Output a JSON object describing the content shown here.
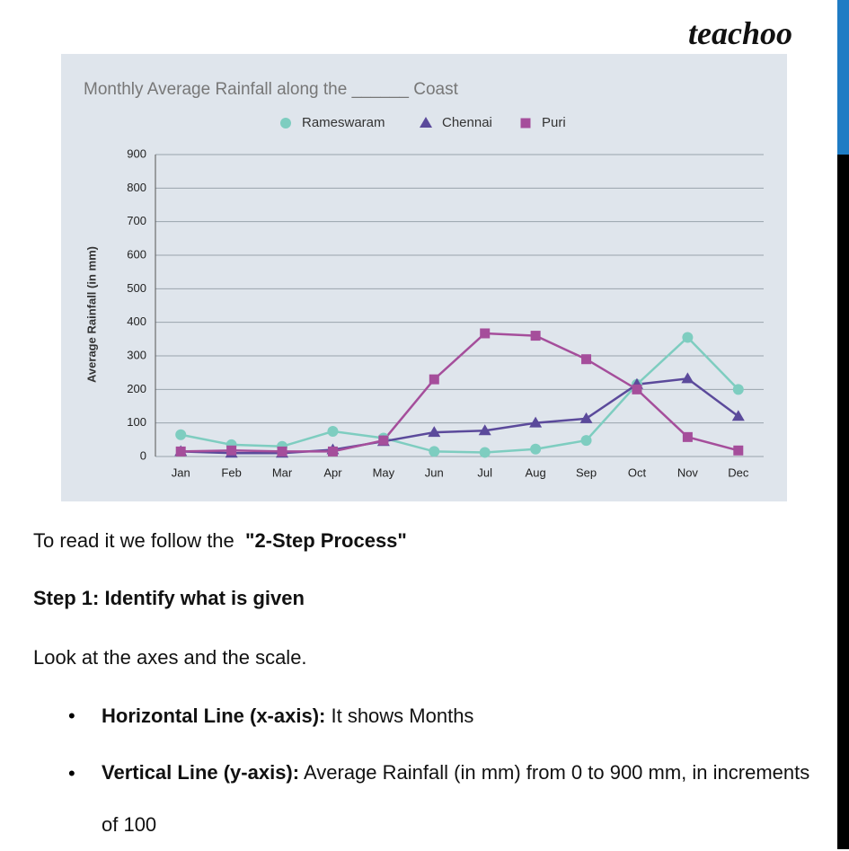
{
  "brand": "teachoo",
  "chart_data": {
    "type": "line",
    "title": "Monthly Average Rainfall along the ______ Coast",
    "y_label": "Average Rainfall (in mm)",
    "categories": [
      "Jan",
      "Feb",
      "Mar",
      "Apr",
      "May",
      "Jun",
      "Jul",
      "Aug",
      "Sep",
      "Oct",
      "Nov",
      "Dec"
    ],
    "series": [
      {
        "name": "Rameswaram",
        "color": "#7ecdc0",
        "marker": "circle",
        "values": [
          65,
          35,
          30,
          75,
          55,
          15,
          12,
          22,
          48,
          215,
          355,
          200
        ]
      },
      {
        "name": "Chennai",
        "color": "#5b4a9b",
        "marker": "triangle",
        "values": [
          15,
          10,
          10,
          20,
          45,
          72,
          77,
          100,
          113,
          215,
          232,
          120
        ]
      },
      {
        "name": "Puri",
        "color": "#a54e9b",
        "marker": "square",
        "values": [
          15,
          18,
          15,
          15,
          48,
          230,
          367,
          360,
          290,
          200,
          58,
          18
        ]
      }
    ],
    "ylim": [
      0,
      900
    ],
    "yticks": [
      0,
      100,
      200,
      300,
      400,
      500,
      600,
      700,
      800,
      900
    ],
    "grid": true,
    "legend": "top"
  },
  "text": {
    "intro": "To read it we follow the",
    "intro_bold": "\"2-Step Process\"",
    "step1": "Step 1: Identify what is given",
    "look": "Look at the axes and the scale.",
    "bullets": [
      {
        "label": "Horizontal Line (x-axis):",
        "text": "It shows Months"
      },
      {
        "label": "Vertical Line (y-axis):",
        "text": "Average Rainfall (in mm) from 0 to 900 mm, in increments of 100"
      }
    ]
  }
}
